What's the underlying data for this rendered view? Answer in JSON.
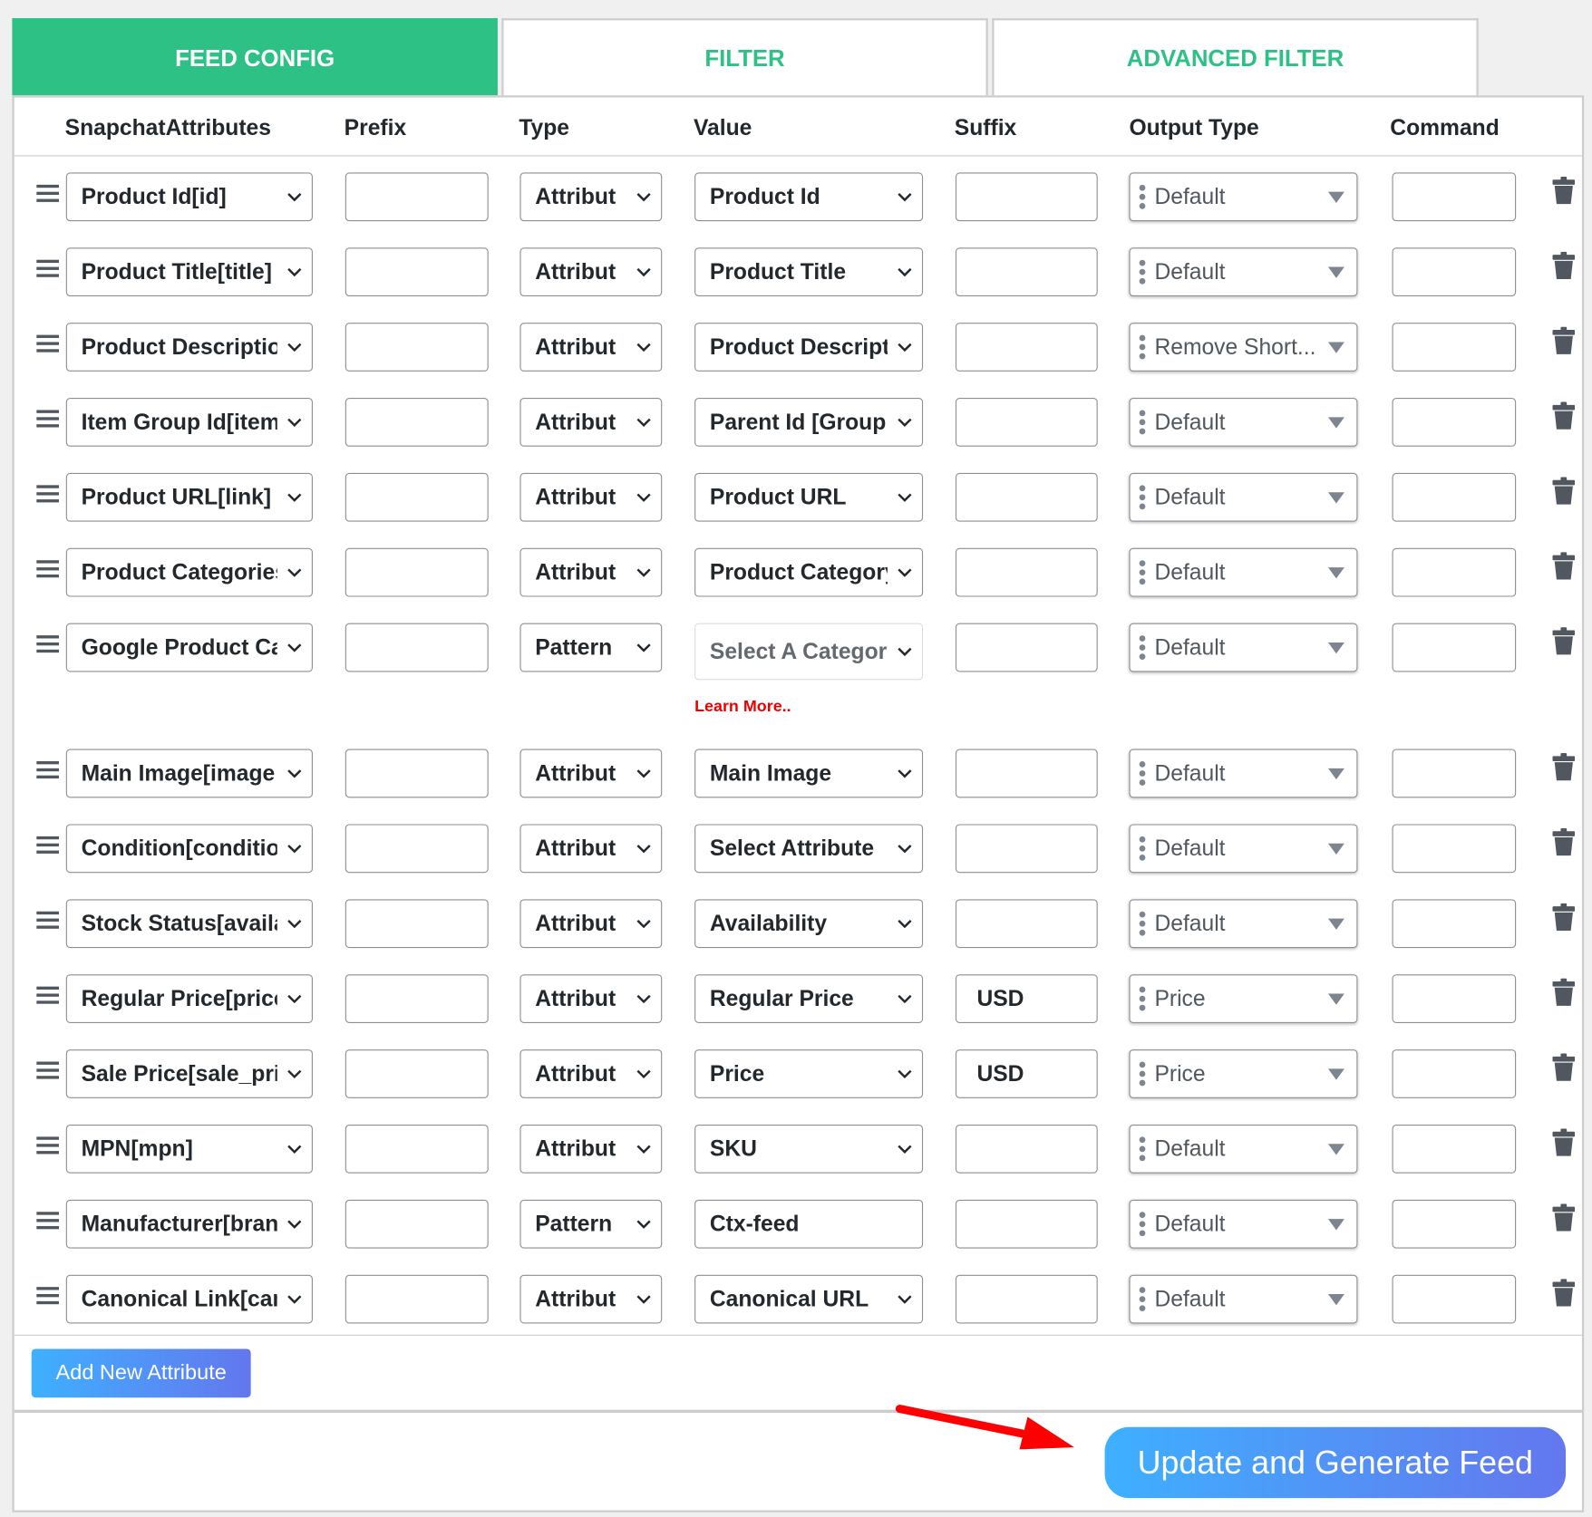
{
  "tabs": [
    {
      "label": "FEED CONFIG",
      "active": true
    },
    {
      "label": "FILTER",
      "active": false
    },
    {
      "label": "ADVANCED FILTER",
      "active": false
    }
  ],
  "columns": [
    "SnapchatAttributes",
    "Prefix",
    "Type",
    "Value",
    "Suffix",
    "Output Type",
    "Command"
  ],
  "rows": [
    {
      "attribute": "Product Id[id]",
      "prefix": "",
      "type": "Attribut",
      "value": "Product Id",
      "suffix": "",
      "output": "Default",
      "command": ""
    },
    {
      "attribute": "Product Title[title]",
      "prefix": "",
      "type": "Attribut",
      "value": "Product Title",
      "suffix": "",
      "output": "Default",
      "command": ""
    },
    {
      "attribute": "Product Description",
      "prefix": "",
      "type": "Attribut",
      "value": "Product Description",
      "suffix": "",
      "output": "Remove Short...",
      "command": ""
    },
    {
      "attribute": "Item Group Id[item",
      "prefix": "",
      "type": "Attribut",
      "value": "Parent Id [Group",
      "suffix": "",
      "output": "Default",
      "command": ""
    },
    {
      "attribute": "Product URL[link]",
      "prefix": "",
      "type": "Attribut",
      "value": "Product URL",
      "suffix": "",
      "output": "Default",
      "command": ""
    },
    {
      "attribute": "Product Categories",
      "prefix": "",
      "type": "Attribut",
      "value": "Product Category",
      "suffix": "",
      "output": "Default",
      "command": ""
    },
    {
      "attribute": "Google Product Category",
      "prefix": "",
      "type": "Pattern",
      "value": "Select A Category",
      "value_kind": "category",
      "learn_more": "Learn More..",
      "suffix": "",
      "output": "Default",
      "command": ""
    },
    {
      "attribute": "Main Image[image",
      "prefix": "",
      "type": "Attribut",
      "value": "Main Image",
      "suffix": "",
      "output": "Default",
      "command": ""
    },
    {
      "attribute": "Condition[condition]",
      "prefix": "",
      "type": "Attribut",
      "value": "Select Attribute",
      "suffix": "",
      "output": "Default",
      "command": ""
    },
    {
      "attribute": "Stock Status[availability]",
      "prefix": "",
      "type": "Attribut",
      "value": "Availability",
      "suffix": "",
      "output": "Default",
      "command": ""
    },
    {
      "attribute": "Regular Price[price]",
      "prefix": "",
      "type": "Attribut",
      "value": "Regular Price",
      "suffix": "USD",
      "output": "Price",
      "command": ""
    },
    {
      "attribute": "Sale Price[sale_price]",
      "prefix": "",
      "type": "Attribut",
      "value": "Price",
      "suffix": "USD",
      "output": "Price",
      "command": ""
    },
    {
      "attribute": "MPN[mpn]",
      "prefix": "",
      "type": "Attribut",
      "value": "SKU",
      "suffix": "",
      "output": "Default",
      "command": ""
    },
    {
      "attribute": "Manufacturer[brand]",
      "prefix": "",
      "type": "Pattern",
      "value": "Ctx-feed",
      "value_kind": "text",
      "suffix": "",
      "output": "Default",
      "command": ""
    },
    {
      "attribute": "Canonical Link[canonical_link]",
      "prefix": "",
      "type": "Attribut",
      "value": "Canonical URL",
      "suffix": "",
      "output": "Default",
      "command": ""
    }
  ],
  "add_button": "Add New Attribute",
  "update_button": "Update and Generate Feed",
  "colors": {
    "accent": "#2dc186",
    "button_start": "#3eb0ff",
    "button_end": "#6477ee",
    "arrow": "#ff0000",
    "link": "#e00000"
  }
}
